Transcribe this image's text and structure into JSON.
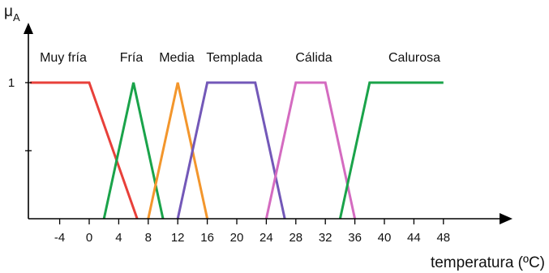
{
  "chart_data": {
    "type": "line",
    "title": "",
    "ylabel": "μ",
    "ylabel_sub": "A",
    "xlabel": "temperatura (ºC)",
    "xlim": [
      -8,
      55
    ],
    "ylim": [
      0,
      1
    ],
    "x_ticks": [
      -4,
      0,
      4,
      8,
      12,
      16,
      20,
      24,
      28,
      32,
      36,
      40,
      44,
      48
    ],
    "y_tick_labels": [
      {
        "value": 1,
        "label": "1"
      }
    ],
    "y_mid_tick": 0.5,
    "grid": false,
    "legend": "none",
    "series": [
      {
        "name": "Muy fría",
        "color": "#e8403a",
        "points": [
          [
            -8,
            1
          ],
          [
            0,
            1
          ],
          [
            6.5,
            0
          ]
        ]
      },
      {
        "name": "Fría",
        "color": "#1aa34a",
        "points": [
          [
            2,
            0
          ],
          [
            6,
            1
          ],
          [
            10,
            0
          ]
        ]
      },
      {
        "name": "Media",
        "color": "#f3962c",
        "points": [
          [
            8,
            0
          ],
          [
            12,
            1
          ],
          [
            16,
            0
          ]
        ]
      },
      {
        "name": "Templada",
        "color": "#7358b8",
        "points": [
          [
            12,
            0
          ],
          [
            16,
            1
          ],
          [
            22.5,
            1
          ],
          [
            26.5,
            0
          ]
        ]
      },
      {
        "name": "Cálida",
        "color": "#d46bc0",
        "points": [
          [
            24,
            0
          ],
          [
            28,
            1
          ],
          [
            32,
            1
          ],
          [
            36,
            0
          ]
        ]
      },
      {
        "name": "Calurosa",
        "color": "#1aa34a",
        "points": [
          [
            34,
            0
          ],
          [
            38,
            1
          ],
          [
            48,
            1
          ]
        ]
      }
    ]
  }
}
